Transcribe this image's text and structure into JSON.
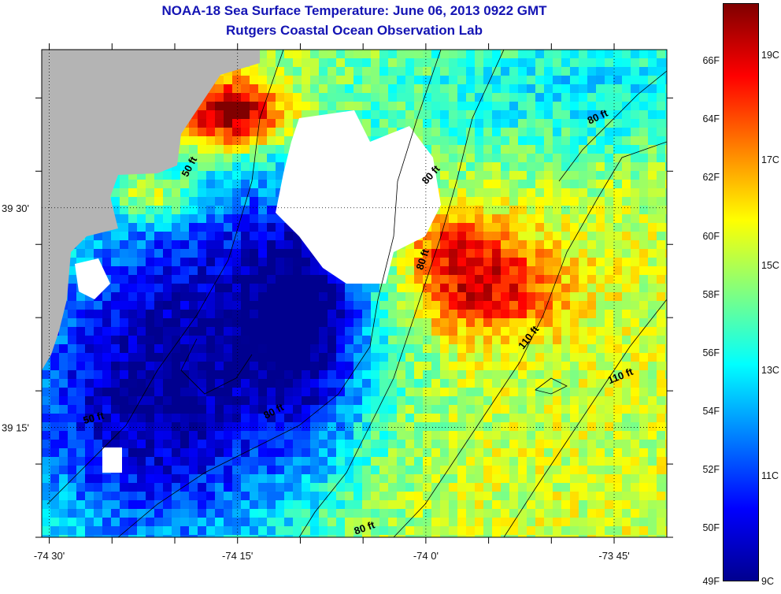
{
  "title": {
    "line1": "NOAA-18 Sea Surface Temperature:  June 06, 2013 0922 GMT",
    "line2": "Rutgers Coastal Ocean Observation Lab"
  },
  "map": {
    "x_axis": {
      "ticks": [
        {
          "label": "-74 30'",
          "lon": -74.5
        },
        {
          "label": "-74 15'",
          "lon": -74.25
        },
        {
          "label": "-74 0'",
          "lon": -74.0
        },
        {
          "label": "-73 45'",
          "lon": -73.75
        }
      ],
      "range": [
        -74.51,
        -73.68
      ]
    },
    "y_axis": {
      "ticks": [
        {
          "label": "39 30'",
          "lat": 39.5
        },
        {
          "label": "39 15'",
          "lat": 39.25
        }
      ],
      "range": [
        39.125,
        39.68
      ]
    },
    "contour_labels": [
      {
        "text": "50 ft",
        "lon": -74.31,
        "lat": 39.545,
        "angle": -62
      },
      {
        "text": "80 ft",
        "lon": -73.99,
        "lat": 39.535,
        "angle": -48
      },
      {
        "text": "80 ft",
        "lon": -73.77,
        "lat": 39.6,
        "angle": -25
      },
      {
        "text": "80 ft",
        "lon": -74.0,
        "lat": 39.44,
        "angle": -72
      },
      {
        "text": "110 ft",
        "lon": -73.86,
        "lat": 39.35,
        "angle": -52
      },
      {
        "text": "110 ft",
        "lon": -73.74,
        "lat": 39.305,
        "angle": -22
      },
      {
        "text": "80 ft",
        "lon": -74.2,
        "lat": 39.265,
        "angle": -28
      },
      {
        "text": "50 ft",
        "lon": -74.44,
        "lat": 39.257,
        "angle": -15
      },
      {
        "text": "80 ft",
        "lon": -74.08,
        "lat": 39.132,
        "angle": -20
      }
    ],
    "land_color": "#b4b4b4",
    "cloud_color": "#ffffff"
  },
  "colorbar": {
    "fahrenheit_labels": [
      "66F",
      "64F",
      "62F",
      "60F",
      "58F",
      "56F",
      "54F",
      "52F",
      "50F",
      "49F"
    ],
    "celsius_labels": [
      "19C",
      "17C",
      "15C",
      "13C",
      "11C",
      "9C"
    ],
    "min_c": 9,
    "max_c": 20,
    "colors": [
      "#00008f",
      "#0000ff",
      "#0080ff",
      "#00ffff",
      "#80ff80",
      "#ffff00",
      "#ff8000",
      "#ff0000",
      "#800000"
    ]
  }
}
